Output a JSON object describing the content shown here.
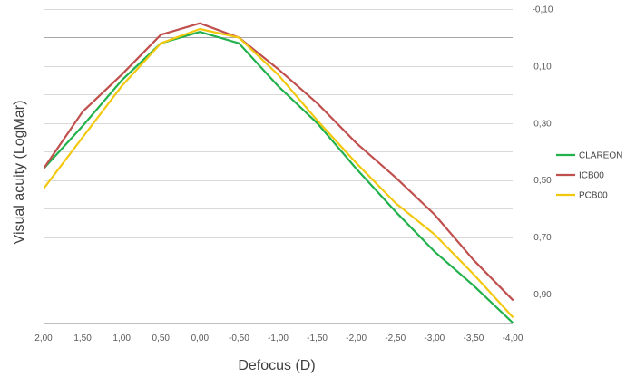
{
  "chart_data": {
    "type": "line",
    "title": "",
    "xlabel": "Defocus (D)",
    "ylabel": "Visual acuity (LogMar)",
    "categories": [
      "2,00",
      "1,50",
      "1,00",
      "0,50",
      "0,00",
      "-0,50",
      "-1,00",
      "-1,50",
      "-2,00",
      "-2,50",
      "-3,00",
      "-3,50",
      "-4,00"
    ],
    "x_values": [
      2.0,
      1.5,
      1.0,
      0.5,
      0.0,
      -0.5,
      -1.0,
      -1.5,
      -2.0,
      -2.5,
      -3.0,
      -3.5,
      -4.0
    ],
    "y_axis": {
      "position": "right",
      "inverted": true,
      "min": -0.1,
      "max": 1.0,
      "ticks": [
        -0.1,
        0.1,
        0.3,
        0.5,
        0.7,
        0.9
      ],
      "tick_labels": [
        "-0,10",
        "0,10",
        "0,30",
        "0,50",
        "0,70",
        "0,90"
      ],
      "gridlines": [
        -0.1,
        0.0,
        0.1,
        0.2,
        0.3,
        0.4,
        0.5,
        0.6,
        0.7,
        0.8,
        0.9
      ]
    },
    "grid": true,
    "legend": {
      "position": "right"
    },
    "series": [
      {
        "name": "CLAREON",
        "color": "#22b14c",
        "values": [
          0.46,
          0.31,
          0.15,
          0.02,
          -0.02,
          0.02,
          0.17,
          0.3,
          0.46,
          0.61,
          0.75,
          0.87,
          1.0
        ]
      },
      {
        "name": "ICB00",
        "color": "#c0504d",
        "values": [
          0.46,
          0.26,
          0.13,
          -0.01,
          -0.05,
          0.0,
          0.11,
          0.23,
          0.37,
          0.49,
          0.62,
          0.78,
          0.92
        ]
      },
      {
        "name": "PCB00",
        "color": "#f2c80f",
        "values": [
          0.53,
          0.35,
          0.17,
          0.02,
          -0.03,
          0.0,
          0.13,
          0.29,
          0.44,
          0.58,
          0.69,
          0.83,
          0.98
        ]
      }
    ]
  }
}
